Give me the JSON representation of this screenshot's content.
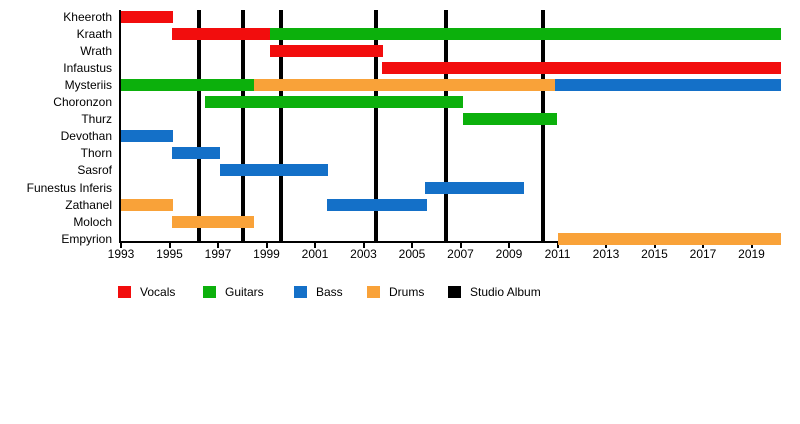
{
  "chart_data": {
    "type": "timeline",
    "title": "",
    "xlabel": "",
    "ylabel": "",
    "grid": false,
    "x_axis": {
      "min": 1993,
      "max": 2020.2,
      "tick_years": [
        1993,
        1995,
        1997,
        1999,
        2001,
        2003,
        2005,
        2007,
        2009,
        2011,
        2013,
        2015,
        2017,
        2019
      ]
    },
    "role_colors": {
      "Vocals": "#f20d0d",
      "Guitars": "#0cb00c",
      "Bass": "#1470c8",
      "Drums": "#f9a239",
      "Studio Album": "#000000"
    },
    "members": [
      {
        "name": "Kheeroth",
        "stints": [
          {
            "role": "Vocals",
            "start": 1993.0,
            "end": 1995.15
          }
        ]
      },
      {
        "name": "Kraath",
        "stints": [
          {
            "role": "Vocals",
            "start": 1995.1,
            "end": 1999.15
          },
          {
            "role": "Guitars",
            "start": 1999.15,
            "end": 2020.2
          }
        ]
      },
      {
        "name": "Wrath",
        "stints": [
          {
            "role": "Vocals",
            "start": 1999.15,
            "end": 2003.8
          }
        ]
      },
      {
        "name": "Infaustus",
        "stints": [
          {
            "role": "Vocals",
            "start": 2003.75,
            "end": 2020.2
          }
        ]
      },
      {
        "name": "Mysteriis",
        "stints": [
          {
            "role": "Guitars",
            "start": 1993.0,
            "end": 1998.5
          },
          {
            "role": "Drums",
            "start": 1998.5,
            "end": 2010.9
          },
          {
            "role": "Bass",
            "start": 2010.9,
            "end": 2020.2
          }
        ]
      },
      {
        "name": "Choronzon",
        "stints": [
          {
            "role": "Guitars",
            "start": 1996.45,
            "end": 2007.1
          }
        ]
      },
      {
        "name": "Thurz",
        "stints": [
          {
            "role": "Guitars",
            "start": 2007.1,
            "end": 2011.0
          }
        ]
      },
      {
        "name": "Devothan",
        "stints": [
          {
            "role": "Bass",
            "start": 1993.0,
            "end": 1995.15
          }
        ]
      },
      {
        "name": "Thorn",
        "stints": [
          {
            "role": "Bass",
            "start": 1995.1,
            "end": 1997.1
          }
        ]
      },
      {
        "name": "Sasrof",
        "stints": [
          {
            "role": "Bass",
            "start": 1997.1,
            "end": 2001.55
          }
        ]
      },
      {
        "name": "Funestus Inferis",
        "stints": [
          {
            "role": "Bass",
            "start": 2005.55,
            "end": 2009.6
          }
        ]
      },
      {
        "name": "Zathanel",
        "stints": [
          {
            "role": "Drums",
            "start": 1993.0,
            "end": 1995.15
          },
          {
            "role": "Bass",
            "start": 2001.5,
            "end": 2005.6
          }
        ]
      },
      {
        "name": "Moloch",
        "stints": [
          {
            "role": "Drums",
            "start": 1995.1,
            "end": 1998.5
          }
        ]
      },
      {
        "name": "Empyrion",
        "stints": [
          {
            "role": "Drums",
            "start": 2011.0,
            "end": 2020.2
          }
        ]
      }
    ],
    "studio_albums": [
      1996.2,
      1998.05,
      1999.6,
      2003.5,
      2006.4,
      2010.4
    ],
    "legend": [
      {
        "label": "Vocals",
        "color": "#f20d0d"
      },
      {
        "label": "Guitars",
        "color": "#0cb00c"
      },
      {
        "label": "Bass",
        "color": "#1470c8"
      },
      {
        "label": "Drums",
        "color": "#f9a239"
      },
      {
        "label": "Studio Album",
        "color": "#000000"
      }
    ],
    "legend_position": "bottom"
  }
}
